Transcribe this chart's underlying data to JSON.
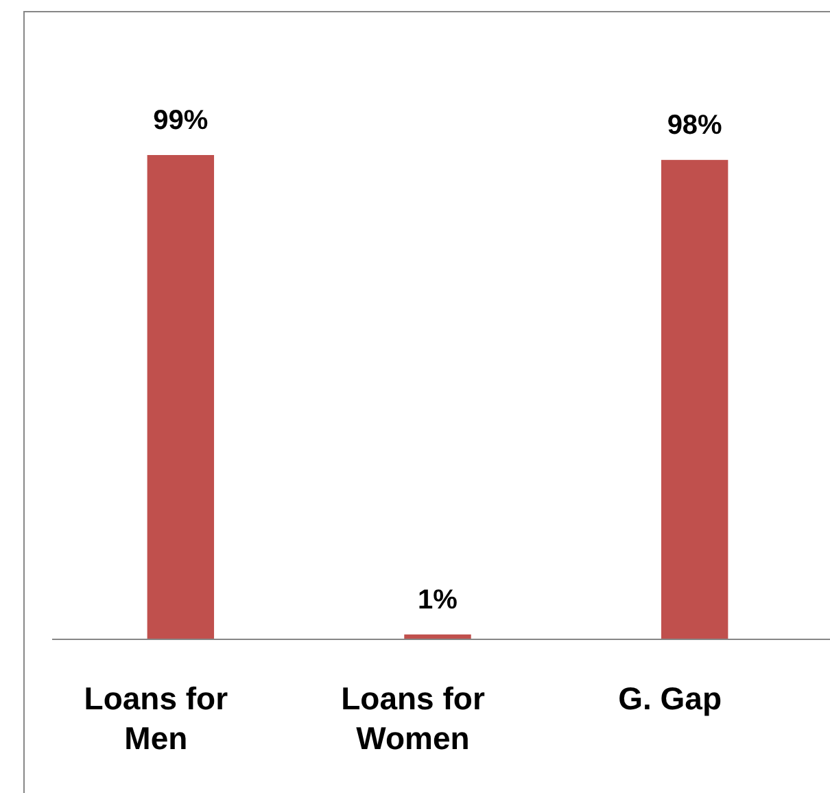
{
  "chart_data": {
    "type": "bar",
    "categories": [
      "Loans for Men",
      "Loans for Women",
      "G. Gap"
    ],
    "values": [
      99,
      1,
      98
    ],
    "color": "#c0504d",
    "value_labels": [
      "99%",
      "1%",
      "98%"
    ]
  }
}
